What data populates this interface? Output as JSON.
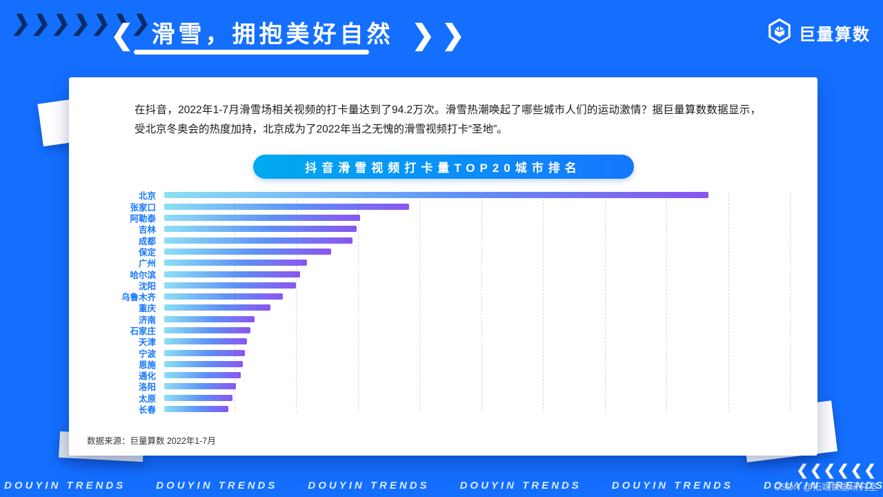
{
  "header": {
    "title": "滑雪，拥抱美好自然",
    "left_arrow": "❮",
    "right_arrows": "❯❯"
  },
  "decor": {
    "top_left_arrows": "❯❯❯❯❯❯❯",
    "bottom_right_arrows": "❮❮❮❮❮❮"
  },
  "logo": {
    "text": "巨量算数"
  },
  "card": {
    "intro": "在抖音，2022年1-7月滑雪场相关视频的打卡量达到了94.2万次。滑雪热潮唤起了哪些城市人们的运动激情？据巨量算数数据显示，受北京冬奥会的热度加持，北京成为了2022年当之无愧的滑雪视频打卡“圣地”。",
    "chart_title": "抖音滑雪视频打卡量TOP20城市排名",
    "source": "数据来源：巨量算数 2022年1-7月"
  },
  "footer": {
    "ticker_items": [
      "DOUYIN TRENDS",
      "DOUYIN TRENDS",
      "DOUYIN TRENDS",
      "DOUYIN TRENDS",
      "DOUYIN TRENDS",
      "DOUYIN TRENDS",
      "DOUYIN TRENDS"
    ]
  },
  "watermark": "CSDN @拓端数据研究室",
  "colors": {
    "background": "#146FFF",
    "label_blue": "#1677FF",
    "bar_gradient_start": "#8CDFF4",
    "bar_gradient_mid": "#5E90F6",
    "bar_gradient_end": "#8A55F0",
    "pill_gradient_start": "#00AAF0",
    "pill_gradient_end": "#1576FF"
  },
  "chart_data": {
    "type": "bar",
    "orientation": "horizontal",
    "title": "抖音滑雪视频打卡量TOP20城市排名",
    "categories": [
      "北京",
      "张家口",
      "阿勒泰",
      "吉林",
      "成都",
      "保定",
      "广州",
      "哈尔滨",
      "沈阳",
      "乌鲁木齐",
      "重庆",
      "济南",
      "石家庄",
      "天津",
      "宁波",
      "恩施",
      "通化",
      "洛阳",
      "太原",
      "长春"
    ],
    "values": [
      100,
      45,
      36,
      35.4,
      34.6,
      30.7,
      26.3,
      25,
      24.2,
      21.8,
      19.5,
      16.6,
      15.8,
      15.2,
      14.8,
      14.5,
      14.1,
      13.2,
      12.5,
      11.8
    ],
    "xlim": [
      0,
      115
    ],
    "xlabel": "",
    "ylabel": "",
    "grid": "dashed-vertical",
    "legend": "none",
    "value_labels_shown": false
  }
}
